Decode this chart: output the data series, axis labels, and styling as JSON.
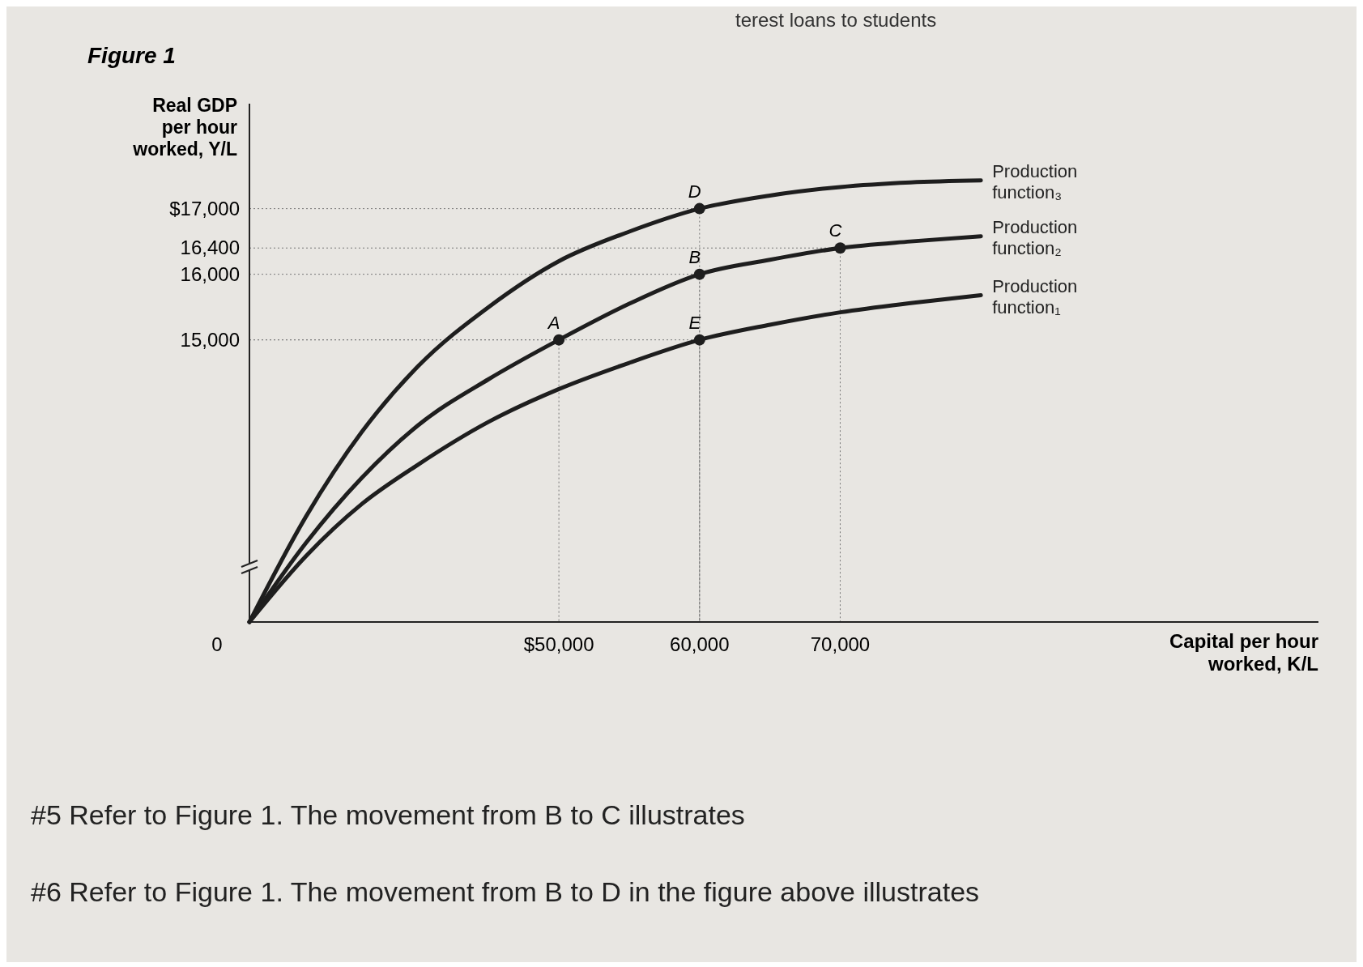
{
  "chart_data": {
    "type": "line",
    "title": "Figure 1",
    "ylabel": "Real GDP per hour worked, Y/L",
    "xlabel": "Capital per hour worked, K/L",
    "x": [
      28000,
      32000,
      36000,
      40000,
      45000,
      50000,
      55000,
      60000,
      65000,
      70000,
      75000,
      80000
    ],
    "series": [
      {
        "name": "Production function₃",
        "color": "#1e1e1e",
        "values": [
          10700,
          12300,
          13600,
          14600,
          15500,
          16200,
          16650,
          17000,
          17200,
          17330,
          17400,
          17430
        ]
      },
      {
        "name": "Production function₂",
        "color": "#1e1e1e",
        "values": [
          10700,
          11900,
          12900,
          13700,
          14400,
          15000,
          15550,
          16000,
          16220,
          16400,
          16500,
          16580
        ]
      },
      {
        "name": "Production function₁",
        "color": "#1e1e1e",
        "values": [
          10700,
          11700,
          12500,
          13100,
          13750,
          14250,
          14650,
          15000,
          15230,
          15420,
          15560,
          15680
        ]
      }
    ],
    "xlim": [
      28000,
      104000
    ],
    "xticks": [
      {
        "value": 50000,
        "label": "$50,000"
      },
      {
        "value": 60000,
        "label": "60,000"
      },
      {
        "value": 70000,
        "label": "70,000"
      }
    ],
    "ylim": [
      10700,
      18600
    ],
    "yticks": [
      {
        "value": 15000,
        "label": "15,000"
      },
      {
        "value": 16000,
        "label": "16,000"
      },
      {
        "value": 16400,
        "label": "16,400"
      },
      {
        "value": 17000,
        "label": "$17,000"
      }
    ],
    "grid": true,
    "marker": "none",
    "line_style": "solid",
    "annotations": [
      {
        "text": "A",
        "x": 50000,
        "y": 15000
      },
      {
        "text": "B",
        "x": 60000,
        "y": 16000
      },
      {
        "text": "C",
        "x": 70000,
        "y": 16400
      },
      {
        "text": "D",
        "x": 60000,
        "y": 17000
      },
      {
        "text": "E",
        "x": 60000,
        "y": 15000
      },
      "0",
      "terest loans to students",
      "#5 Refer to Figure 1. The movement from B to C illustrates",
      "#6 Refer to Figure 1. The movement from B to D in the figure above illustrates"
    ]
  }
}
